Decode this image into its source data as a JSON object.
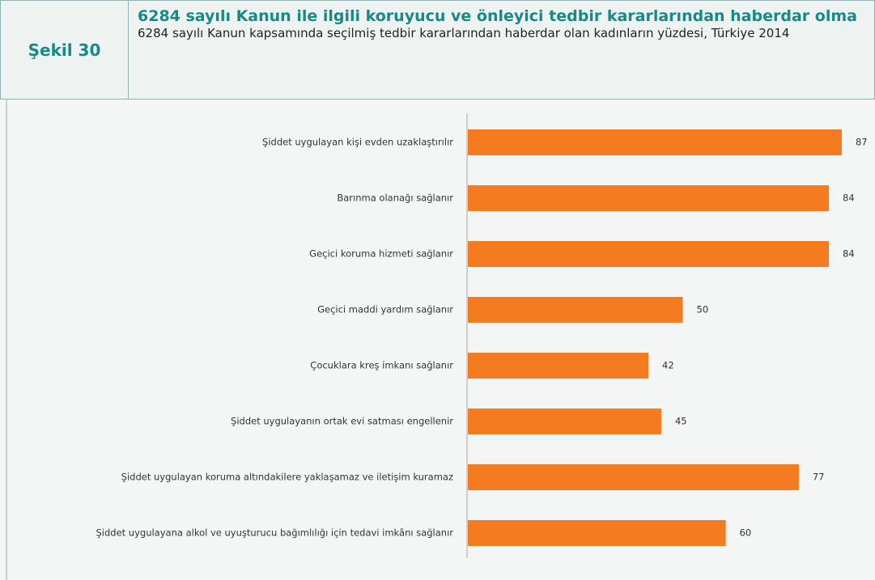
{
  "header": {
    "figure_label": "Şekil 30",
    "title": "6284 sayılı Kanun ile ilgili koruyucu ve önleyici tedbir kararlarından haberdar olma",
    "subtitle": "6284 sayılı Kanun kapsamında seçilmiş tedbir kararlarından haberdar olan kadınların yüzdesi, Türkiye 2014"
  },
  "chart_data": {
    "type": "bar",
    "orientation": "horizontal",
    "color": "#f47b20",
    "categories": [
      "Şiddet uygulayan kişi evden uzaklaştırılır",
      "Barınma olanağı sağlanır",
      "Geçici koruma hizmeti sağlanır",
      "Geçici maddi yardım sağlanır",
      "Çocuklara kreş imkanı sağlanır",
      "Şiddet uygulayanın ortak evi satması engellenir",
      "Şiddet uygulayan koruma altındakilere yaklaşamaz ve iletişim kuramaz",
      "Şiddet uygulayana alkol ve uyuşturucu bağımlılığı için tedavi imkânı sağlanır"
    ],
    "values": [
      87,
      84,
      84,
      50,
      42,
      45,
      77,
      60
    ]
  }
}
